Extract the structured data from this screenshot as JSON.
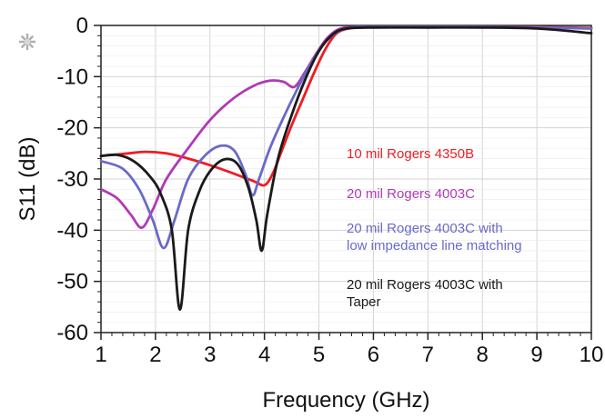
{
  "chart_data": {
    "type": "line",
    "title": "",
    "xlabel": "Frequency (GHz)",
    "ylabel": "S11 (dB)",
    "xlim": [
      1,
      10
    ],
    "ylim": [
      -60,
      0
    ],
    "xticks": [
      1,
      2,
      3,
      4,
      5,
      6,
      7,
      8,
      9,
      10
    ],
    "yticks": [
      0,
      -10,
      -20,
      -30,
      -40,
      -50,
      -60
    ],
    "grid": true,
    "legend_position": "right",
    "series": [
      {
        "name": "10 mil Rogers 4350B",
        "label_lines": [
          "10 mil Rogers 4350B"
        ],
        "color": "#ee1c24",
        "x": [
          1.0,
          1.5,
          1.8,
          2.2,
          2.6,
          3.0,
          3.4,
          3.8,
          4.0,
          4.15,
          4.3,
          4.5,
          4.7,
          4.9,
          5.1,
          5.3,
          5.5,
          5.8,
          6.5,
          8,
          9,
          10
        ],
        "y": [
          -25.5,
          -25.0,
          -24.7,
          -25.0,
          -26.0,
          -27.3,
          -28.8,
          -30.4,
          -31.2,
          -29.0,
          -25.0,
          -19.5,
          -14.5,
          -9.5,
          -5.0,
          -1.8,
          -0.7,
          -0.4,
          -0.3,
          -0.3,
          -0.3,
          -0.5
        ]
      },
      {
        "name": "20 mil Rogers 4003C",
        "label_lines": [
          "20 mil Rogers 4003C"
        ],
        "color": "#b03ab6",
        "x": [
          1.0,
          1.3,
          1.55,
          1.75,
          1.95,
          2.2,
          2.6,
          3.0,
          3.4,
          3.8,
          4.1,
          4.35,
          4.55,
          4.75,
          4.95,
          5.15,
          5.35,
          5.6,
          6.0,
          7,
          8,
          9,
          10
        ],
        "y": [
          -32.0,
          -33.8,
          -37.0,
          -39.5,
          -36.0,
          -30.0,
          -24.0,
          -18.5,
          -14.5,
          -11.8,
          -10.8,
          -11.0,
          -12.0,
          -9.0,
          -5.5,
          -2.5,
          -0.8,
          -0.3,
          -0.3,
          -0.3,
          -0.3,
          -0.4,
          -0.6
        ]
      },
      {
        "name": "20 mil Rogers 4003C with low impedance line matching",
        "label_lines": [
          "20 mil Rogers 4003C with",
          "low impedance line matching"
        ],
        "color": "#6a6ac8",
        "x": [
          1.0,
          1.4,
          1.7,
          1.95,
          2.15,
          2.35,
          2.6,
          2.9,
          3.2,
          3.45,
          3.65,
          3.78,
          3.9,
          4.1,
          4.35,
          4.6,
          4.85,
          5.1,
          5.35,
          5.6,
          6.0,
          7,
          8,
          9,
          10
        ],
        "y": [
          -26.5,
          -28.0,
          -32.0,
          -38.0,
          -43.5,
          -38.0,
          -30.0,
          -25.5,
          -23.5,
          -24.5,
          -29.0,
          -33.2,
          -30.0,
          -24.0,
          -18.0,
          -12.5,
          -7.5,
          -3.5,
          -1.2,
          -0.4,
          -0.3,
          -0.3,
          -0.3,
          -0.4,
          -0.6
        ]
      },
      {
        "name": "20 mil Rogers 4003C with Taper",
        "label_lines": [
          "20 mil Rogers 4003C with",
          "Taper"
        ],
        "color": "#1a1a1a",
        "x": [
          1.0,
          1.3,
          1.6,
          1.9,
          2.1,
          2.3,
          2.45,
          2.6,
          2.8,
          3.0,
          3.25,
          3.5,
          3.7,
          3.85,
          3.95,
          4.05,
          4.25,
          4.5,
          4.75,
          5.0,
          5.25,
          5.5,
          6.0,
          7,
          8,
          9,
          10
        ],
        "y": [
          -25.5,
          -25.3,
          -26.5,
          -29.5,
          -33.0,
          -40.0,
          -55.5,
          -40.0,
          -32.5,
          -28.5,
          -26.2,
          -27.0,
          -31.5,
          -38.0,
          -44.0,
          -37.0,
          -26.0,
          -17.5,
          -10.5,
          -5.0,
          -1.8,
          -0.6,
          -0.4,
          -0.4,
          -0.4,
          -0.6,
          -1.5
        ]
      }
    ]
  }
}
